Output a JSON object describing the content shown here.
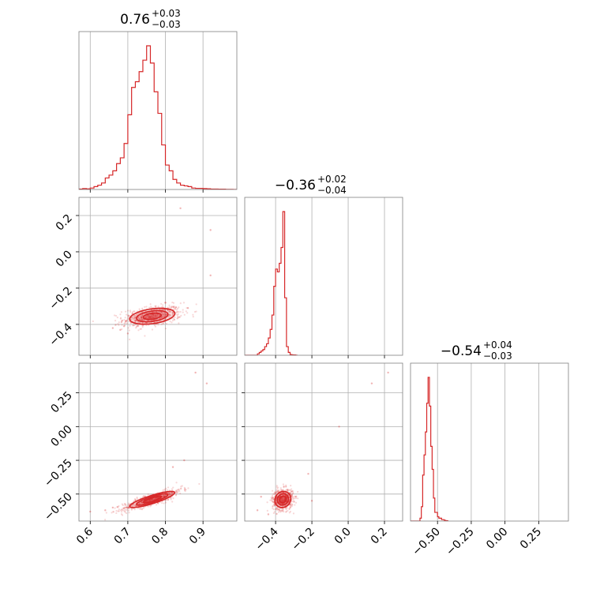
{
  "chart_data": {
    "type": "corner",
    "color": "#d62728",
    "grid": true,
    "panels": [
      {
        "id": "hist-0",
        "kind": "hist",
        "title": {
          "value": "0.76",
          "plus": "+0.03",
          "minus": "−0.03"
        },
        "xlim": [
          0.57,
          0.99
        ],
        "xticks": [
          0.6,
          0.7,
          0.8,
          0.9
        ],
        "show_xticklabels": false,
        "bins": {
          "start": 0.57,
          "width": 0.01,
          "values": [
            0.003,
            0.006,
            0.004,
            0.01,
            0.02,
            0.03,
            0.045,
            0.08,
            0.1,
            0.13,
            0.18,
            0.22,
            0.32,
            0.52,
            0.71,
            0.75,
            0.82,
            0.9,
            1.0,
            0.88,
            0.68,
            0.53,
            0.31,
            0.17,
            0.13,
            0.07,
            0.045,
            0.03,
            0.025,
            0.02,
            0.01,
            0.008,
            0.008,
            0.006,
            0.005,
            0.003,
            0.003,
            0.002,
            0.002,
            0.001,
            0.001,
            0.0
          ]
        }
      },
      {
        "id": "hist-1",
        "kind": "hist",
        "title": {
          "value": "−0.36",
          "plus": "+0.02",
          "minus": "−0.04"
        },
        "xlim": [
          -0.57,
          0.3
        ],
        "xticks": [
          -0.4,
          -0.2,
          0.0,
          0.2
        ],
        "show_xticklabels": false,
        "bins": {
          "start": -0.57,
          "width": 0.01,
          "values": [
            0,
            0,
            0,
            0,
            0,
            0,
            0,
            0.01,
            0.02,
            0.03,
            0.04,
            0.06,
            0.08,
            0.12,
            0.18,
            0.28,
            0.48,
            0.6,
            0.58,
            0.64,
            0.75,
            1.0,
            0.4,
            0.06,
            0.02,
            0.005,
            0.003,
            0.002,
            0.001
          ]
        }
      },
      {
        "id": "hist-2",
        "kind": "hist",
        "title": {
          "value": "−0.54",
          "plus": "+0.04",
          "minus": "−0.03"
        },
        "xlim": [
          -0.7,
          0.47
        ],
        "xticks": [
          -0.5,
          -0.25,
          0.0,
          0.25
        ],
        "xticklabels": [
          "−0.50",
          "−0.25",
          "0.00",
          "0.25"
        ],
        "show_xticklabels": true,
        "bins": {
          "start": -0.7,
          "width": 0.01,
          "values": [
            0,
            0,
            0,
            0,
            0,
            0,
            0,
            0.02,
            0.1,
            0.32,
            0.46,
            0.62,
            0.82,
            1.0,
            0.8,
            0.52,
            0.36,
            0.16,
            0.06,
            0.06,
            0.03,
            0.02,
            0.02,
            0.01,
            0.01,
            0.005,
            0.003,
            0.002
          ]
        }
      },
      {
        "id": "joint-1-0",
        "kind": "joint",
        "xlim": [
          0.57,
          0.99
        ],
        "ylim": [
          -0.57,
          0.3
        ],
        "xticks": [
          0.6,
          0.7,
          0.8,
          0.9
        ],
        "yticks": [
          -0.4,
          -0.2,
          0.0,
          0.2
        ],
        "yticklabels": [
          "−0.4",
          "−0.2",
          "0.0",
          "0.2"
        ],
        "show_xticklabels": false,
        "center": [
          0.765,
          -0.355
        ],
        "sd": [
          0.03,
          0.022
        ],
        "rho": 0.35,
        "points": [
          [
            0.68,
            -0.43
          ],
          [
            0.7,
            -0.45
          ],
          [
            0.69,
            -0.41
          ],
          [
            0.84,
            0.24
          ],
          [
            0.92,
            0.12
          ],
          [
            0.92,
            -0.13
          ],
          [
            0.86,
            -0.31
          ],
          [
            0.8,
            -0.28
          ],
          [
            0.72,
            -0.39
          ],
          [
            0.66,
            -0.42
          ]
        ]
      },
      {
        "id": "joint-2-0",
        "kind": "joint",
        "xlim": [
          0.57,
          0.99
        ],
        "ylim": [
          -0.7,
          0.47
        ],
        "xticks": [
          0.6,
          0.7,
          0.8,
          0.9
        ],
        "xticklabels": [
          "0.6",
          "0.7",
          "0.8",
          "0.9"
        ],
        "yticks": [
          -0.5,
          -0.25,
          0.0,
          0.25
        ],
        "yticklabels": [
          "−0.50",
          "−0.25",
          "0.00",
          "0.25"
        ],
        "show_xticklabels": true,
        "center": [
          0.765,
          -0.54
        ],
        "sd": [
          0.03,
          0.03
        ],
        "rho": 0.85,
        "points": [
          [
            0.88,
            0.4
          ],
          [
            0.91,
            0.32
          ],
          [
            0.85,
            -0.25
          ],
          [
            0.82,
            -0.3
          ],
          [
            0.64,
            -0.62
          ],
          [
            0.66,
            -0.6
          ],
          [
            0.73,
            -0.58
          ],
          [
            0.6,
            -0.63
          ]
        ]
      },
      {
        "id": "joint-2-1",
        "kind": "joint",
        "xlim": [
          -0.57,
          0.3
        ],
        "ylim": [
          -0.7,
          0.47
        ],
        "xticks": [
          -0.4,
          -0.2,
          0.0,
          0.2
        ],
        "xticklabels": [
          "−0.4",
          "−0.2",
          "0.0",
          "0.2"
        ],
        "yticks": [
          -0.5,
          -0.25,
          0.0,
          0.25
        ],
        "show_xticklabels": true,
        "center": [
          -0.36,
          -0.54
        ],
        "sd": [
          0.022,
          0.03
        ],
        "rho": 0.1,
        "points": [
          [
            0.22,
            0.4
          ],
          [
            0.13,
            0.32
          ],
          [
            -0.05,
            0.0
          ],
          [
            -0.22,
            -0.35
          ],
          [
            -0.2,
            -0.55
          ],
          [
            -0.48,
            -0.52
          ],
          [
            -0.5,
            -0.62
          ],
          [
            -0.44,
            -0.65
          ]
        ]
      }
    ]
  }
}
